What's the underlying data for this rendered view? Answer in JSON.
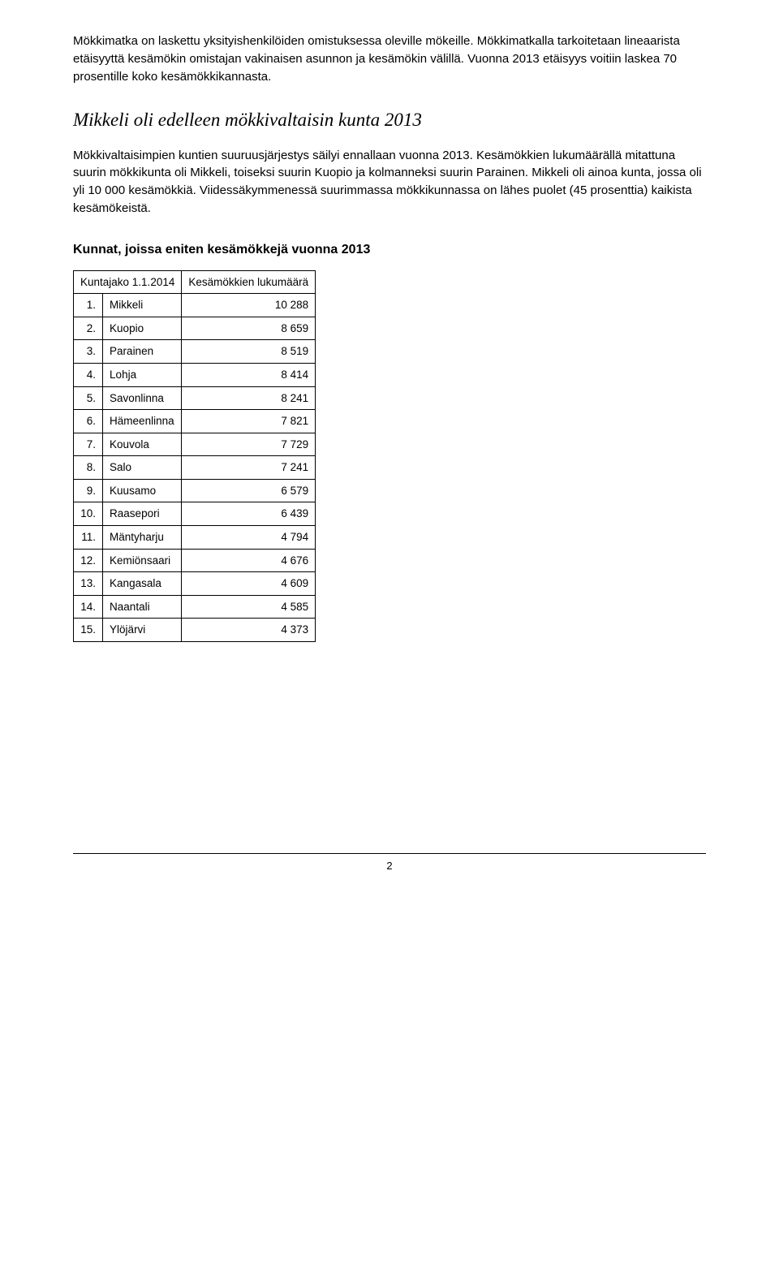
{
  "paragraphs": {
    "p1": "Mökkimatka on laskettu yksityishenkilöiden omistuksessa oleville mökeille. Mökkimatkalla tarkoitetaan lineaarista etäisyyttä kesämökin omistajan vakinaisen asunnon ja kesämökin välillä. Vuonna 2013 etäisyys voitiin laskea 70 prosentille koko kesämökkikannasta.",
    "p2": "Mökkivaltaisimpien kuntien suuruusjärjestys säilyi ennallaan vuonna 2013. Kesämökkien lukumäärällä mitattuna suurin mökkikunta oli Mikkeli, toiseksi suurin Kuopio ja kolmanneksi suurin Parainen. Mikkeli oli ainoa kunta, jossa oli yli 10 000 kesämökkiä. Viidessäkymmenessä suurimmassa mökkikunnassa on lähes puolet (45 prosenttia) kaikista kesämökeistä."
  },
  "heading": "Mikkeli oli edelleen mökkivaltaisin kunta 2013",
  "table": {
    "title": "Kunnat, joissa eniten kesämökkejä vuonna 2013",
    "columns": {
      "col1": "Kuntajako 1.1.2014",
      "col2": "Kesämökkien lukumäärä"
    },
    "rows": [
      {
        "rank": "1.",
        "name": "Mikkeli",
        "value": "10 288"
      },
      {
        "rank": "2.",
        "name": "Kuopio",
        "value": "8 659"
      },
      {
        "rank": "3.",
        "name": "Parainen",
        "value": "8 519"
      },
      {
        "rank": "4.",
        "name": "Lohja",
        "value": "8 414"
      },
      {
        "rank": "5.",
        "name": "Savonlinna",
        "value": "8 241"
      },
      {
        "rank": "6.",
        "name": "Hämeenlinna",
        "value": "7 821"
      },
      {
        "rank": "7.",
        "name": "Kouvola",
        "value": "7 729"
      },
      {
        "rank": "8.",
        "name": "Salo",
        "value": "7 241"
      },
      {
        "rank": "9.",
        "name": "Kuusamo",
        "value": "6 579"
      },
      {
        "rank": "10.",
        "name": "Raasepori",
        "value": "6 439"
      },
      {
        "rank": "11.",
        "name": "Mäntyharju",
        "value": "4 794"
      },
      {
        "rank": "12.",
        "name": "Kemiönsaari",
        "value": "4 676"
      },
      {
        "rank": "13.",
        "name": "Kangasala",
        "value": "4 609"
      },
      {
        "rank": "14.",
        "name": "Naantali",
        "value": "4 585"
      },
      {
        "rank": "15.",
        "name": "Ylöjärvi",
        "value": "4 373"
      }
    ]
  },
  "footer": {
    "page_number": "2"
  },
  "styles": {
    "body_bg": "#ffffff",
    "text_color": "#000000",
    "border_color": "#000000"
  }
}
